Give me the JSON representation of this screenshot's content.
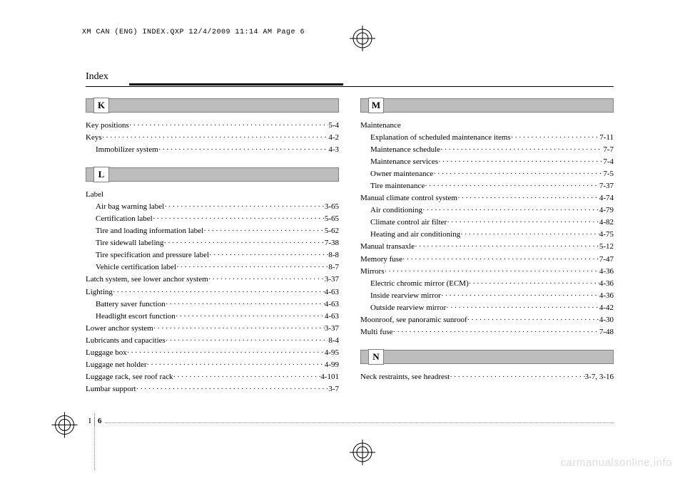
{
  "print_header": "XM CAN (ENG) INDEX.QXP  12/4/2009  11:14 AM  Page 6",
  "section_title": "Index",
  "page_marker_i": "I",
  "page_marker_num": "6",
  "watermark": "carmanualsonline.info",
  "leaders": "····································································································",
  "left": {
    "groups": [
      {
        "letter": "K",
        "items": [
          {
            "label": "Key positions",
            "page": "5-4",
            "indent": 0
          },
          {
            "label": "Keys",
            "page": "4-2",
            "indent": 0
          },
          {
            "label": "Immobilizer system",
            "page": "4-3",
            "indent": 1
          }
        ]
      },
      {
        "letter": "L",
        "items": [
          {
            "label": "Label",
            "page": "",
            "indent": 0
          },
          {
            "label": "Air bag warning label",
            "page": "3-65",
            "indent": 1
          },
          {
            "label": "Certification label",
            "page": "5-65",
            "indent": 1
          },
          {
            "label": "Tire and loading information label",
            "page": "5-62",
            "indent": 1
          },
          {
            "label": "Tire sidewall labeling",
            "page": "7-38",
            "indent": 1
          },
          {
            "label": "Tire specification and pressure label",
            "page": "8-8",
            "indent": 1
          },
          {
            "label": "Vehicle certification label",
            "page": "8-7",
            "indent": 1
          },
          {
            "label": "Latch system, see lower anchor system",
            "page": "3-37",
            "indent": 0
          },
          {
            "label": "Lighting",
            "page": "4-63",
            "indent": 0
          },
          {
            "label": "Battery saver function",
            "page": "4-63",
            "indent": 1
          },
          {
            "label": "Headlight escort function",
            "page": "4-63",
            "indent": 1
          },
          {
            "label": "Lower anchor system",
            "page": "3-37",
            "indent": 0
          },
          {
            "label": "Lubricants and capacities",
            "page": "8-4",
            "indent": 0
          },
          {
            "label": "Luggage box",
            "page": "4-95",
            "indent": 0
          },
          {
            "label": "Luggage net holder",
            "page": "4-99",
            "indent": 0
          },
          {
            "label": "Luggage rack, see roof rack",
            "page": "4-101",
            "indent": 0
          },
          {
            "label": "Lumbar support",
            "page": "3-7",
            "indent": 0
          }
        ]
      }
    ]
  },
  "right": {
    "groups": [
      {
        "letter": "M",
        "items": [
          {
            "label": "Maintenance",
            "page": "",
            "indent": 0
          },
          {
            "label": "Explanation of scheduled maintenance items",
            "page": "7-11",
            "indent": 1
          },
          {
            "label": "Maintenance schedule",
            "page": "7-7",
            "indent": 1
          },
          {
            "label": "Maintenance services",
            "page": "7-4",
            "indent": 1
          },
          {
            "label": "Owner maintenance",
            "page": "7-5",
            "indent": 1
          },
          {
            "label": "Tire maintenance",
            "page": "7-37",
            "indent": 1
          },
          {
            "label": "Manual climate control system",
            "page": "4-74",
            "indent": 0
          },
          {
            "label": "Air conditioning",
            "page": "4-79",
            "indent": 1
          },
          {
            "label": "Climate control air filter",
            "page": "4-82",
            "indent": 1
          },
          {
            "label": "Heating and air conditioning",
            "page": "4-75",
            "indent": 1
          },
          {
            "label": "Manual transaxle",
            "page": "5-12",
            "indent": 0
          },
          {
            "label": "Memory fuse",
            "page": "7-47",
            "indent": 0
          },
          {
            "label": "Mirrors",
            "page": "4-36",
            "indent": 0
          },
          {
            "label": "Electric chromic mirror (ECM)",
            "page": "4-36",
            "indent": 1
          },
          {
            "label": "Inside rearview mirror",
            "page": "4-36",
            "indent": 1
          },
          {
            "label": "Outside rearview mirror",
            "page": "4-42",
            "indent": 1
          },
          {
            "label": "Moonroof, see panoramic sunroof",
            "page": "4-30",
            "indent": 0
          },
          {
            "label": "Multi fuse",
            "page": "7-48",
            "indent": 0
          }
        ]
      },
      {
        "letter": "N",
        "items": [
          {
            "label": "Neck restraints, see headrest",
            "page": "3-7, 3-16",
            "indent": 0
          }
        ]
      }
    ]
  }
}
